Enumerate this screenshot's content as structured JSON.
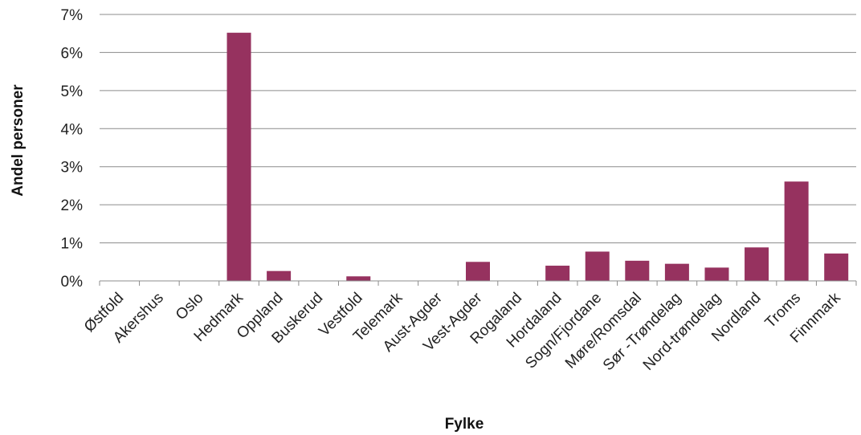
{
  "chart_data": {
    "type": "bar",
    "title": "",
    "xlabel": "Fylke",
    "ylabel": "Andel personer",
    "ylim": [
      0,
      7
    ],
    "yticks": [
      "0%",
      "1%",
      "2%",
      "3%",
      "4%",
      "5%",
      "6%",
      "7%"
    ],
    "grid": true,
    "bar_color": "#96325f",
    "categories": [
      "Østfold",
      "Akershus",
      "Oslo",
      "Hedmark",
      "Oppland",
      "Buskerud",
      "Vestfold",
      "Telemark",
      "Aust-Agder",
      "Vest-Agder",
      "Rogaland",
      "Hordaland",
      "Sogn/Fjordane",
      "Møre/Romsdal",
      "Sør -Trøndelag",
      "Nord-trøndelag",
      "Nordland",
      "Troms",
      "Finnmark"
    ],
    "values": [
      0,
      0,
      0,
      6.52,
      0.26,
      0,
      0.12,
      0,
      0,
      0.5,
      0,
      0.4,
      0.77,
      0.53,
      0.45,
      0.35,
      0.88,
      2.61,
      0.72
    ]
  }
}
